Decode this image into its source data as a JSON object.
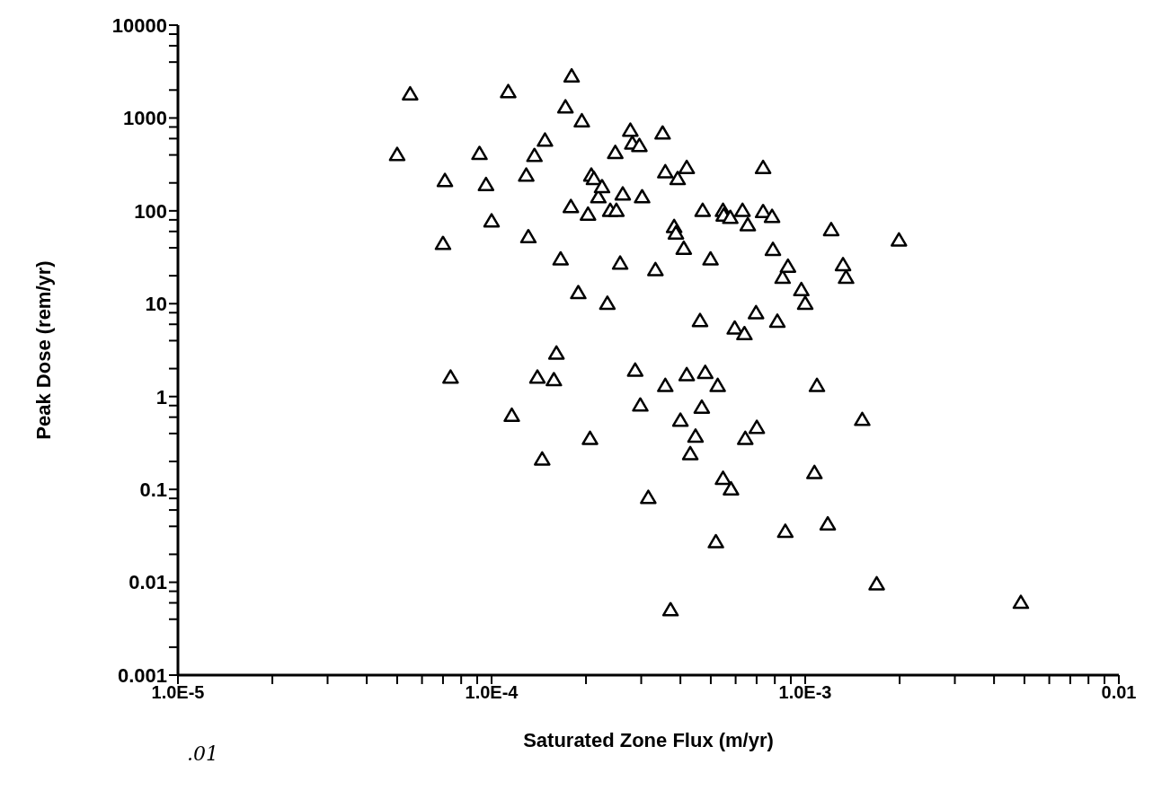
{
  "chart_data": {
    "type": "scatter",
    "xlabel": "Saturated Zone Flux (m/yr)",
    "ylabel": "Peak Dose (rem/yr)",
    "log": "xy",
    "grid": false,
    "marker": "triangle",
    "annotations": [
      ".01"
    ],
    "xlim": [
      1e-05,
      0.01
    ],
    "ylim": [
      0.001,
      10000
    ],
    "xticks": [
      {
        "value": 1e-05,
        "label": "1.0E-5"
      },
      {
        "value": 2e-05,
        "label": null
      },
      {
        "value": 3e-05,
        "label": null
      },
      {
        "value": 4e-05,
        "label": null
      },
      {
        "value": 5e-05,
        "label": null
      },
      {
        "value": 6e-05,
        "label": null
      },
      {
        "value": 7e-05,
        "label": null
      },
      {
        "value": 8e-05,
        "label": null
      },
      {
        "value": 9e-05,
        "label": null
      },
      {
        "value": 0.0001,
        "label": "1.0E-4"
      },
      {
        "value": 0.0002,
        "label": null
      },
      {
        "value": 0.0003,
        "label": null
      },
      {
        "value": 0.0004,
        "label": null
      },
      {
        "value": 0.0005,
        "label": null
      },
      {
        "value": 0.0006,
        "label": null
      },
      {
        "value": 0.0007,
        "label": null
      },
      {
        "value": 0.0008,
        "label": null
      },
      {
        "value": 0.0009,
        "label": null
      },
      {
        "value": 0.001,
        "label": "1.0E-3"
      },
      {
        "value": 0.002,
        "label": null
      },
      {
        "value": 0.003,
        "label": null
      },
      {
        "value": 0.004,
        "label": null
      },
      {
        "value": 0.005,
        "label": null
      },
      {
        "value": 0.006,
        "label": null
      },
      {
        "value": 0.007,
        "label": null
      },
      {
        "value": 0.008,
        "label": null
      },
      {
        "value": 0.009,
        "label": null
      },
      0.01
    ],
    "yticks": [
      0.001,
      {
        "value": 0.002,
        "label": null
      },
      {
        "value": 0.004,
        "label": null
      },
      {
        "value": 0.006,
        "label": null
      },
      {
        "value": 0.008,
        "label": null
      },
      0.01,
      {
        "value": 0.02,
        "label": null
      },
      {
        "value": 0.04,
        "label": null
      },
      {
        "value": 0.06,
        "label": null
      },
      {
        "value": 0.08,
        "label": null
      },
      0.1,
      {
        "value": 0.2,
        "label": null
      },
      {
        "value": 0.4,
        "label": null
      },
      {
        "value": 0.6,
        "label": null
      },
      {
        "value": 0.8,
        "label": null
      },
      1,
      {
        "value": 2,
        "label": null
      },
      {
        "value": 4,
        "label": null
      },
      {
        "value": 6,
        "label": null
      },
      {
        "value": 8,
        "label": null
      },
      10,
      {
        "value": 20,
        "label": null
      },
      {
        "value": 40,
        "label": null
      },
      {
        "value": 60,
        "label": null
      },
      {
        "value": 80,
        "label": null
      },
      100,
      {
        "value": 200,
        "label": null
      },
      {
        "value": 400,
        "label": null
      },
      {
        "value": 600,
        "label": null
      },
      {
        "value": 800,
        "label": null
      },
      1000,
      {
        "value": 2000,
        "label": null
      },
      {
        "value": 4000,
        "label": null
      },
      {
        "value": 6000,
        "label": null
      },
      {
        "value": 8000,
        "label": null
      },
      10000
    ],
    "series": [
      {
        "color": "#000000",
        "x": [
          5e-05,
          5.5e-05,
          7.1e-05,
          7e-05,
          9.15e-05,
          9.6e-05,
          0.0001,
          7.4e-05,
          0.000113,
          0.000116,
          0.000129,
          0.000131,
          0.000137,
          0.000148,
          0.00014,
          0.000145,
          0.000158,
          0.000161,
          0.000166,
          0.000172,
          0.00018,
          0.000179,
          0.000194,
          0.000189,
          0.000203,
          0.000208,
          0.000212,
          0.000206,
          0.000219,
          0.000225,
          0.000234,
          0.000239,
          0.000248,
          0.00025,
          0.000257,
          0.000262,
          0.000277,
          0.000281,
          0.000287,
          0.000298,
          0.000296,
          0.000302,
          0.000316,
          0.000333,
          0.000351,
          0.000358,
          0.000358,
          0.000372,
          0.000382,
          0.000387,
          0.0004,
          0.000392,
          0.00041,
          0.000419,
          0.000419,
          0.00043,
          0.000447,
          0.000462,
          0.000471,
          0.000468,
          0.00048,
          0.000499,
          0.000526,
          0.000519,
          0.000547,
          0.000547,
          0.00055,
          0.00058,
          0.000577,
          0.000596,
          0.00064,
          0.000644,
          0.000631,
          0.000656,
          0.000697,
          0.000701,
          0.000734,
          0.000734,
          0.000784,
          0.000789,
          0.000815,
          0.000847,
          0.000864,
          0.000881,
          0.000972,
          0.001,
          0.00109,
          0.00107,
          0.00118,
          0.00121,
          0.00132,
          0.00135,
          0.00152,
          0.00169,
          0.00199,
          0.00487
        ],
        "values": [
          400,
          1800,
          210,
          44,
          410,
          190,
          77,
          1.6,
          1900,
          0.62,
          240,
          52,
          390,
          570,
          1.6,
          0.21,
          1.5,
          2.9,
          30,
          1300,
          2800,
          110,
          920,
          13,
          91,
          240,
          220,
          0.35,
          140,
          180,
          10,
          100,
          420,
          100,
          27,
          150,
          730,
          530,
          1.9,
          0.8,
          500,
          140,
          0.081,
          23,
          680,
          1.3,
          260,
          0.005,
          67,
          57,
          0.55,
          220,
          39,
          1.7,
          290,
          0.24,
          0.37,
          6.5,
          100,
          0.76,
          1.8,
          30,
          1.3,
          0.027,
          0.13,
          100,
          89,
          0.1,
          84,
          5.4,
          4.7,
          0.35,
          100,
          70,
          7.9,
          0.46,
          290,
          97,
          86,
          38,
          6.4,
          19,
          0.035,
          25,
          14,
          10,
          1.3,
          0.15,
          0.042,
          62,
          26,
          19,
          0.56,
          0.0095,
          48,
          0.006
        ]
      }
    ]
  }
}
